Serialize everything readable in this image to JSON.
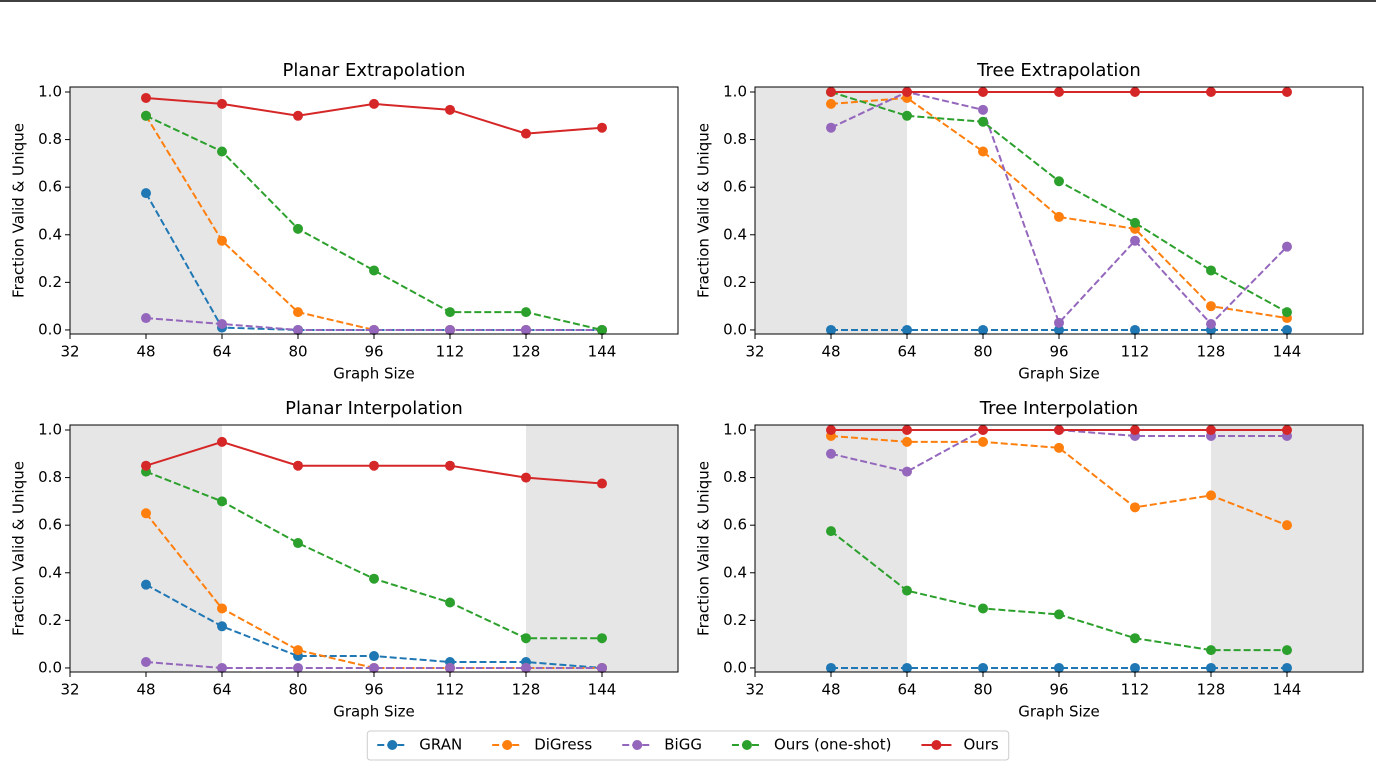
{
  "chart_data": [
    {
      "type": "line",
      "title": "Planar Extrapolation",
      "xlabel": "Graph Size",
      "ylabel": "Fraction Valid & Unique",
      "x": [
        48,
        64,
        80,
        96,
        112,
        128,
        144
      ],
      "xlim": [
        32,
        160
      ],
      "xticks": [
        32,
        48,
        64,
        80,
        96,
        112,
        128,
        144
      ],
      "ylim": [
        -0.017,
        1.021
      ],
      "yticks": [
        {
          "value": 0,
          "label": "0.0"
        },
        {
          "value": 0.2,
          "label": "0.2"
        },
        {
          "value": 0.4,
          "label": "0.4"
        },
        {
          "value": 0.6,
          "label": "0.6"
        },
        {
          "value": 0.8,
          "label": "0.8"
        },
        {
          "value": 1,
          "label": "1.0"
        }
      ],
      "shaded_ranges": [
        [
          32,
          64
        ]
      ],
      "series": [
        {
          "name": "GRAN",
          "color": "#1f77b4",
          "linestyle": "dashed",
          "values": [
            0.575,
            0.01,
            0,
            0,
            0,
            0,
            0
          ]
        },
        {
          "name": "DiGress",
          "color": "#ff7f0e",
          "linestyle": "dashed",
          "values": [
            0.9,
            0.375,
            0.075,
            0,
            0,
            0,
            0
          ]
        },
        {
          "name": "BiGG",
          "color": "#9467bd",
          "linestyle": "dashed",
          "values": [
            0.05,
            0.025,
            0,
            0,
            0,
            0,
            0
          ]
        },
        {
          "name": "Ours (one-shot)",
          "color": "#2ca02c",
          "linestyle": "dashed",
          "values": [
            0.9,
            0.75,
            0.425,
            0.25,
            0.075,
            0.075,
            0
          ]
        },
        {
          "name": "Ours",
          "color": "#d62728",
          "linestyle": "solid",
          "values": [
            0.975,
            0.95,
            0.9,
            0.95,
            0.925,
            0.825,
            0.85
          ]
        }
      ]
    },
    {
      "type": "line",
      "title": "Tree Extrapolation",
      "xlabel": "Graph Size",
      "ylabel": "Fraction Valid & Unique",
      "x": [
        48,
        64,
        80,
        96,
        112,
        128,
        144
      ],
      "xlim": [
        32,
        160
      ],
      "xticks": [
        32,
        48,
        64,
        80,
        96,
        112,
        128,
        144
      ],
      "ylim": [
        -0.017,
        1.021
      ],
      "yticks": [
        {
          "value": 0,
          "label": "0.0"
        },
        {
          "value": 0.2,
          "label": "0.2"
        },
        {
          "value": 0.4,
          "label": "0.4"
        },
        {
          "value": 0.6,
          "label": "0.6"
        },
        {
          "value": 0.8,
          "label": "0.8"
        },
        {
          "value": 1,
          "label": "1.0"
        }
      ],
      "shaded_ranges": [
        [
          32,
          64
        ]
      ],
      "series": [
        {
          "name": "GRAN",
          "color": "#1f77b4",
          "linestyle": "dashed",
          "values": [
            0,
            0,
            0,
            0,
            0,
            0,
            0
          ]
        },
        {
          "name": "DiGress",
          "color": "#ff7f0e",
          "linestyle": "dashed",
          "values": [
            0.95,
            0.975,
            0.75,
            0.475,
            0.425,
            0.1,
            0.05
          ]
        },
        {
          "name": "BiGG",
          "color": "#9467bd",
          "linestyle": "dashed",
          "values": [
            0.85,
            1,
            0.925,
            0.03,
            0.375,
            0.025,
            0.35
          ]
        },
        {
          "name": "Ours (one-shot)",
          "color": "#2ca02c",
          "linestyle": "dashed",
          "values": [
            1,
            0.9,
            0.875,
            0.625,
            0.45,
            0.25,
            0.075
          ]
        },
        {
          "name": "Ours",
          "color": "#d62728",
          "linestyle": "solid",
          "values": [
            1,
            1,
            1,
            1,
            1,
            1,
            1
          ]
        }
      ]
    },
    {
      "type": "line",
      "title": "Planar Interpolation",
      "xlabel": "Graph Size",
      "ylabel": "Fraction Valid & Unique",
      "x": [
        48,
        64,
        80,
        96,
        112,
        128,
        144
      ],
      "xlim": [
        32,
        160
      ],
      "xticks": [
        32,
        48,
        64,
        80,
        96,
        112,
        128,
        144
      ],
      "ylim": [
        -0.017,
        1.021
      ],
      "yticks": [
        {
          "value": 0,
          "label": "0.0"
        },
        {
          "value": 0.2,
          "label": "0.2"
        },
        {
          "value": 0.4,
          "label": "0.4"
        },
        {
          "value": 0.6,
          "label": "0.6"
        },
        {
          "value": 0.8,
          "label": "0.8"
        },
        {
          "value": 1,
          "label": "1.0"
        }
      ],
      "shaded_ranges": [
        [
          32,
          64
        ],
        [
          128,
          160
        ]
      ],
      "series": [
        {
          "name": "GRAN",
          "color": "#1f77b4",
          "linestyle": "dashed",
          "values": [
            0.35,
            0.175,
            0.05,
            0.05,
            0.025,
            0.025,
            0
          ]
        },
        {
          "name": "DiGress",
          "color": "#ff7f0e",
          "linestyle": "dashed",
          "values": [
            0.65,
            0.25,
            0.075,
            0,
            0,
            0,
            0
          ]
        },
        {
          "name": "BiGG",
          "color": "#9467bd",
          "linestyle": "dashed",
          "values": [
            0.025,
            0,
            0,
            0,
            0,
            0,
            0
          ]
        },
        {
          "name": "Ours (one-shot)",
          "color": "#2ca02c",
          "linestyle": "dashed",
          "values": [
            0.825,
            0.7,
            0.525,
            0.375,
            0.275,
            0.125,
            0.125
          ]
        },
        {
          "name": "Ours",
          "color": "#d62728",
          "linestyle": "solid",
          "values": [
            0.85,
            0.95,
            0.85,
            0.85,
            0.85,
            0.8,
            0.775
          ]
        }
      ]
    },
    {
      "type": "line",
      "title": "Tree Interpolation",
      "xlabel": "Graph Size",
      "ylabel": "Fraction Valid & Unique",
      "x": [
        48,
        64,
        80,
        96,
        112,
        128,
        144
      ],
      "xlim": [
        32,
        160
      ],
      "xticks": [
        32,
        48,
        64,
        80,
        96,
        112,
        128,
        144
      ],
      "ylim": [
        -0.017,
        1.021
      ],
      "yticks": [
        {
          "value": 0,
          "label": "0.0"
        },
        {
          "value": 0.2,
          "label": "0.2"
        },
        {
          "value": 0.4,
          "label": "0.4"
        },
        {
          "value": 0.6,
          "label": "0.6"
        },
        {
          "value": 0.8,
          "label": "0.8"
        },
        {
          "value": 1,
          "label": "1.0"
        }
      ],
      "shaded_ranges": [
        [
          32,
          64
        ],
        [
          128,
          160
        ]
      ],
      "series": [
        {
          "name": "GRAN",
          "color": "#1f77b4",
          "linestyle": "dashed",
          "values": [
            0,
            0,
            0,
            0,
            0,
            0,
            0
          ]
        },
        {
          "name": "DiGress",
          "color": "#ff7f0e",
          "linestyle": "dashed",
          "values": [
            0.975,
            0.95,
            0.95,
            0.925,
            0.675,
            0.725,
            0.6
          ]
        },
        {
          "name": "BiGG",
          "color": "#9467bd",
          "linestyle": "dashed",
          "values": [
            0.9,
            0.825,
            1,
            1,
            0.975,
            0.975,
            0.975
          ]
        },
        {
          "name": "Ours (one-shot)",
          "color": "#2ca02c",
          "linestyle": "dashed",
          "values": [
            0.575,
            0.325,
            0.25,
            0.225,
            0.125,
            0.075,
            0.075
          ]
        },
        {
          "name": "Ours",
          "color": "#d62728",
          "linestyle": "solid",
          "values": [
            1,
            1,
            1,
            1,
            1,
            1,
            1
          ]
        }
      ]
    }
  ]
}
